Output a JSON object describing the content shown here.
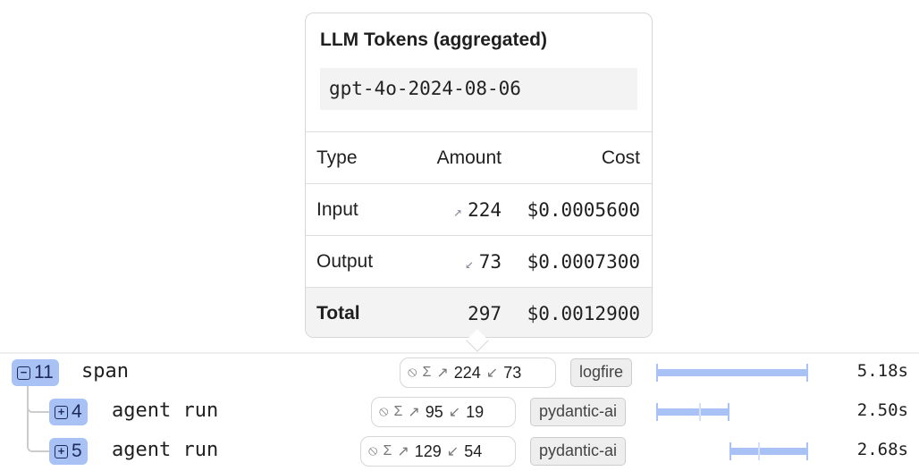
{
  "tooltip": {
    "title": "LLM Tokens (aggregated)",
    "model": "gpt-4o-2024-08-06",
    "headers": [
      "Type",
      "Amount",
      "Cost"
    ],
    "rows": [
      {
        "type": "Input",
        "icon": "arrow-up-right-icon",
        "amount": "224",
        "cost": "$0.0005600"
      },
      {
        "type": "Output",
        "icon": "arrow-down-left-icon",
        "amount": "73",
        "cost": "$0.0007300"
      }
    ],
    "total": {
      "type": "Total",
      "amount": "297",
      "cost": "$0.0012900"
    }
  },
  "spans": [
    {
      "count": "11",
      "expanded": true,
      "name": "span",
      "input": "224",
      "output": "73",
      "tag": "logfire",
      "duration": "5.18s",
      "start_frac": 0,
      "end_frac": 1
    },
    {
      "count": "4",
      "expanded": false,
      "name": "agent run",
      "input": "95",
      "output": "19",
      "tag": "pydantic-ai",
      "duration": "2.50s",
      "start_frac": 0,
      "end_frac": 0.48
    },
    {
      "count": "5",
      "expanded": false,
      "name": "agent run",
      "input": "129",
      "output": "54",
      "tag": "pydantic-ai",
      "duration": "2.68s",
      "start_frac": 0.485,
      "end_frac": 1
    }
  ],
  "colors": {
    "accent": "#a8c2f5"
  }
}
